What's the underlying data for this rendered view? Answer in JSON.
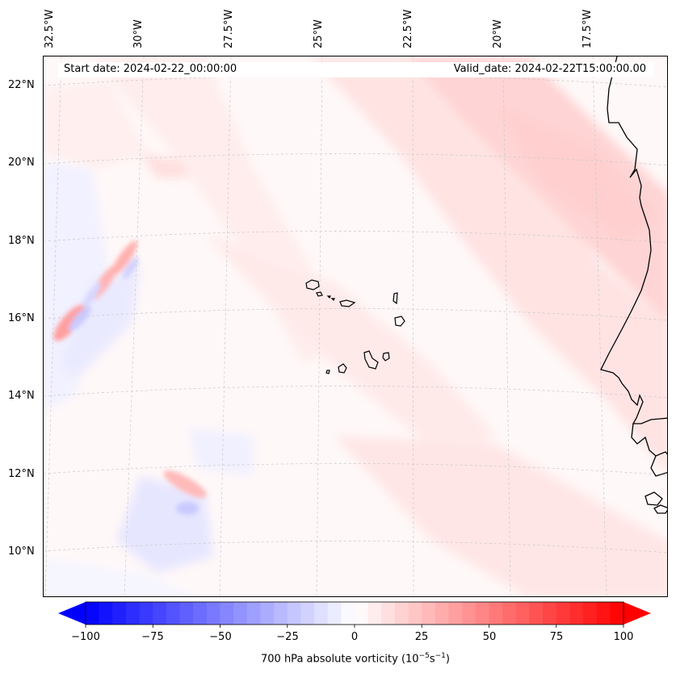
{
  "map": {
    "start_date": "Start date: 2024-02-22_00:00:00",
    "valid_date": "Valid_date: 2024-02-22T15:00:00.00",
    "longitude_labels": [
      "32.5°W",
      "30°W",
      "27.5°W",
      "25°W",
      "22.5°W",
      "20°W",
      "17.5°W"
    ],
    "latitude_labels": [
      "22°N",
      "20°N",
      "18°N",
      "16°N",
      "14°N",
      "12°N",
      "10°N"
    ],
    "coastline_color": "#000000",
    "gridline_color": "#c8c8c8"
  },
  "colorbar": {
    "ticks": [
      "−100",
      "−75",
      "−50",
      "−25",
      "0",
      "25",
      "50",
      "75",
      "100"
    ],
    "vmin": -100,
    "vmax": 100,
    "label_main": "700 hPa absolute vorticity (10",
    "label_exp1": "−5",
    "label_mid": "s",
    "label_exp2": "−1",
    "label_end": ")",
    "min_color": "#0000ff",
    "max_color": "#ff0000",
    "extend": "both"
  }
}
